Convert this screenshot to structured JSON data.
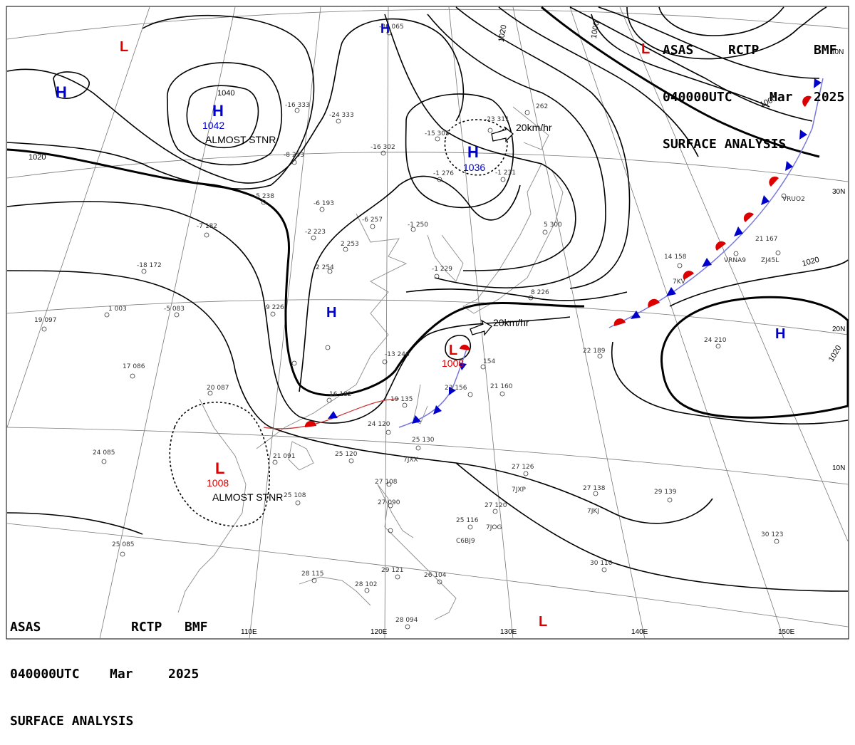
{
  "header": {
    "line1": [
      "ASAS",
      "RCTP",
      "BMF"
    ],
    "line2": [
      "040000UTC",
      "Mar",
      "2025"
    ],
    "line3": "SURFACE ANALYSIS"
  },
  "colors": {
    "high": "#0000cc",
    "low": "#dd0000",
    "isobar": "#000000",
    "grid": "#777777"
  },
  "lon_labels": [
    "110E",
    "120E",
    "130E",
    "140E",
    "150E"
  ],
  "lat_labels": [
    "40N",
    "30N",
    "20N",
    "10N"
  ],
  "isobar_labels": [
    "1040",
    "1020",
    "1000",
    "1020",
    "1020",
    "1000",
    "1020"
  ],
  "pressure_centers": [
    {
      "type": "H",
      "value": "1042",
      "note": "ALMOST STNR"
    },
    {
      "type": "H",
      "value": "1036"
    },
    {
      "type": "H"
    },
    {
      "type": "H"
    },
    {
      "type": "H"
    },
    {
      "type": "H"
    },
    {
      "type": "L",
      "value": "1008"
    },
    {
      "type": "L",
      "value": "1008",
      "note": "ALMOST STNR"
    },
    {
      "type": "L"
    },
    {
      "type": "L"
    },
    {
      "type": "L"
    }
  ],
  "motion_vectors": [
    "20km/hr",
    "20km/hr"
  ],
  "station_obs": [
    "-36 065",
    "-16 333",
    "-24 333",
    "-15 305",
    "-23 311",
    "-16 302",
    "-8 253",
    "-5 238",
    "-6 193",
    "-2 223",
    "-7 182",
    "-18 172",
    "2 254",
    "-6 257",
    "2 253",
    "-1 250",
    "-1 229",
    "1 003",
    "-5 083",
    "19 097",
    "17 086",
    "20 087",
    "24 085",
    "25 085",
    "28 115",
    "28 102",
    "28 094",
    "29 121",
    "26 104",
    "25 116",
    "27 120",
    "27 126",
    "27 138",
    "29 139",
    "30 110",
    "30 123",
    "22 189",
    "24 210",
    "21 160",
    "23 156",
    "154",
    "19 135",
    "24 120",
    "25 120",
    "25 108",
    "25 130",
    "16 182",
    "8 226",
    "5 300",
    "262",
    "14 158",
    "21 167",
    "-13 246",
    "9 226",
    "-1 276",
    "-1 231",
    "21 091",
    "27 108",
    "27 090",
    "7KV",
    "VRNA9",
    "ZJ45L",
    "VRUO2",
    "7JXX",
    "7JXP",
    "7JKJ",
    "7JOG",
    "C6BJ9"
  ]
}
